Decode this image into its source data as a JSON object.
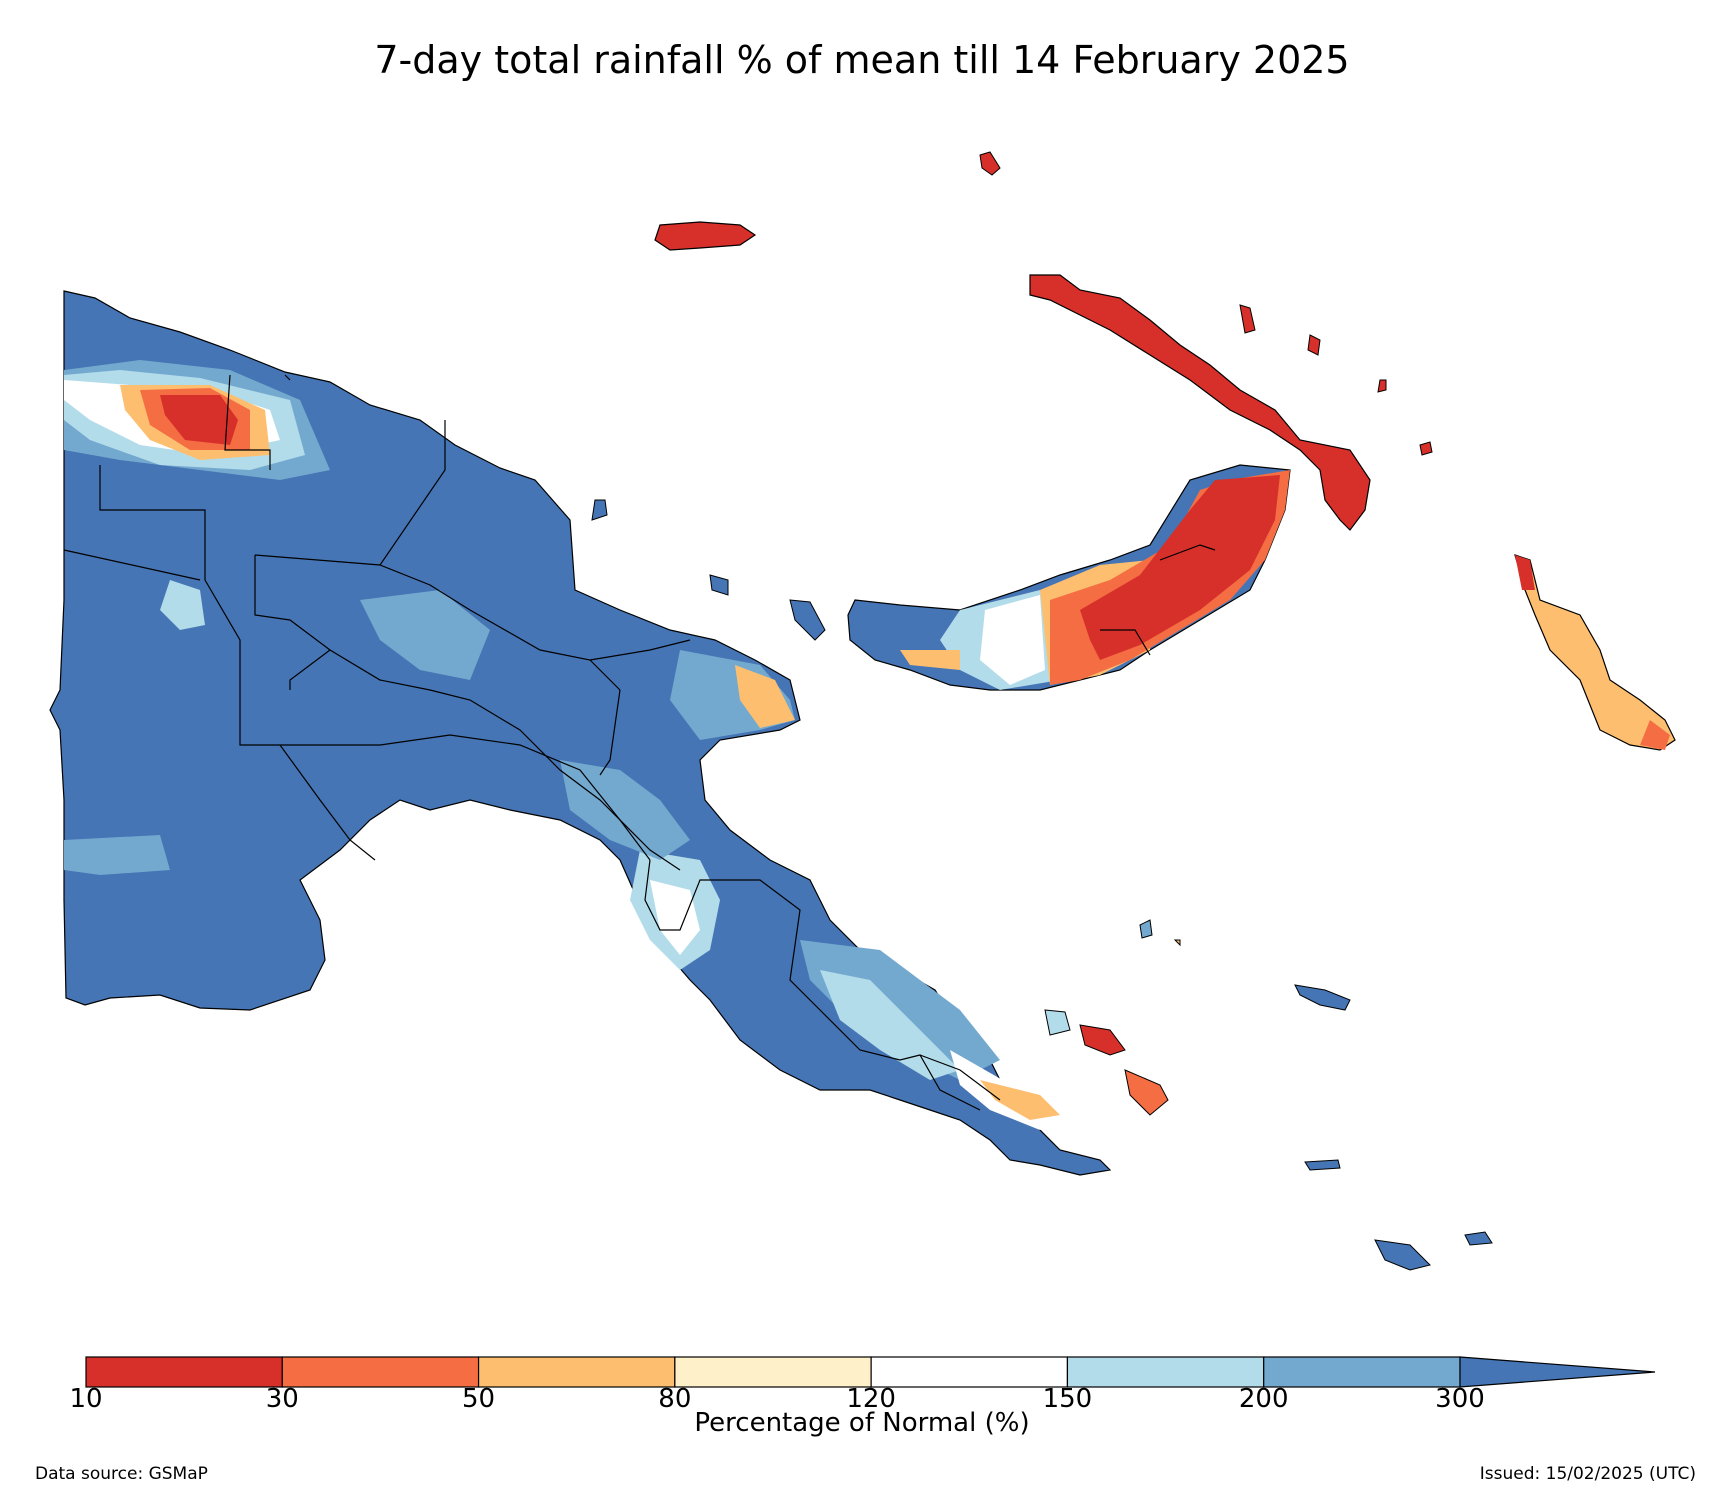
{
  "title": "7-day total rainfall % of mean till 14 February 2025",
  "colorbar": {
    "label": "Percentage of Normal (%)",
    "ticks": [
      "10",
      "30",
      "50",
      "80",
      "120",
      "150",
      "200",
      "300"
    ],
    "colors": [
      "#d7302a",
      "#f46d43",
      "#fdbf6f",
      "#fef0c9",
      "#ffffff",
      "#b3dceb",
      "#74a9cf",
      "#4575b4"
    ],
    "extend": "max"
  },
  "colors": {
    "above_normal": "#4575b4",
    "moderately_above": "#74a9cf",
    "slightly_above": "#b3dceb",
    "normal": "#ffffff",
    "near_normal_dry": "#fef0c9",
    "below": "#fdbf6f",
    "well_below": "#f46d43",
    "very_below": "#d7302a"
  },
  "footer": {
    "source": "Data source: GSMaP",
    "issued": "Issued: 15/02/2025 (UTC)"
  }
}
